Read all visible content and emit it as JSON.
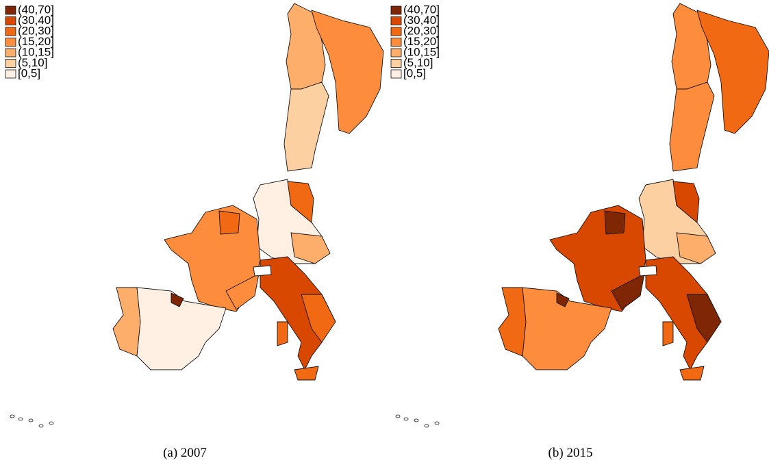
{
  "panels": [
    {
      "caption": "(a) 2007",
      "legend": [
        {
          "label": "(40,70]",
          "color": "#7f2704"
        },
        {
          "label": "(30,40]",
          "color": "#d94801"
        },
        {
          "label": "(20,30]",
          "color": "#f16913"
        },
        {
          "label": "(15,20]",
          "color": "#fd8d3c"
        },
        {
          "label": "(10,15]",
          "color": "#fdae6b"
        },
        {
          "label": "(5,10]",
          "color": "#fdd0a2"
        },
        {
          "label": "[0,5]",
          "color": "#fff0e3"
        }
      ]
    },
    {
      "caption": "(b) 2015",
      "legend": [
        {
          "label": "(40,70]",
          "color": "#7f2704"
        },
        {
          "label": "(30,40]",
          "color": "#d94801"
        },
        {
          "label": "(20,30]",
          "color": "#f16913"
        },
        {
          "label": "(15,20]",
          "color": "#fd8d3c"
        },
        {
          "label": "(10,15]",
          "color": "#fdae6b"
        },
        {
          "label": "(5,10]",
          "color": "#fdd0a2"
        },
        {
          "label": "[0,5]",
          "color": "#fff0e3"
        }
      ]
    }
  ]
}
